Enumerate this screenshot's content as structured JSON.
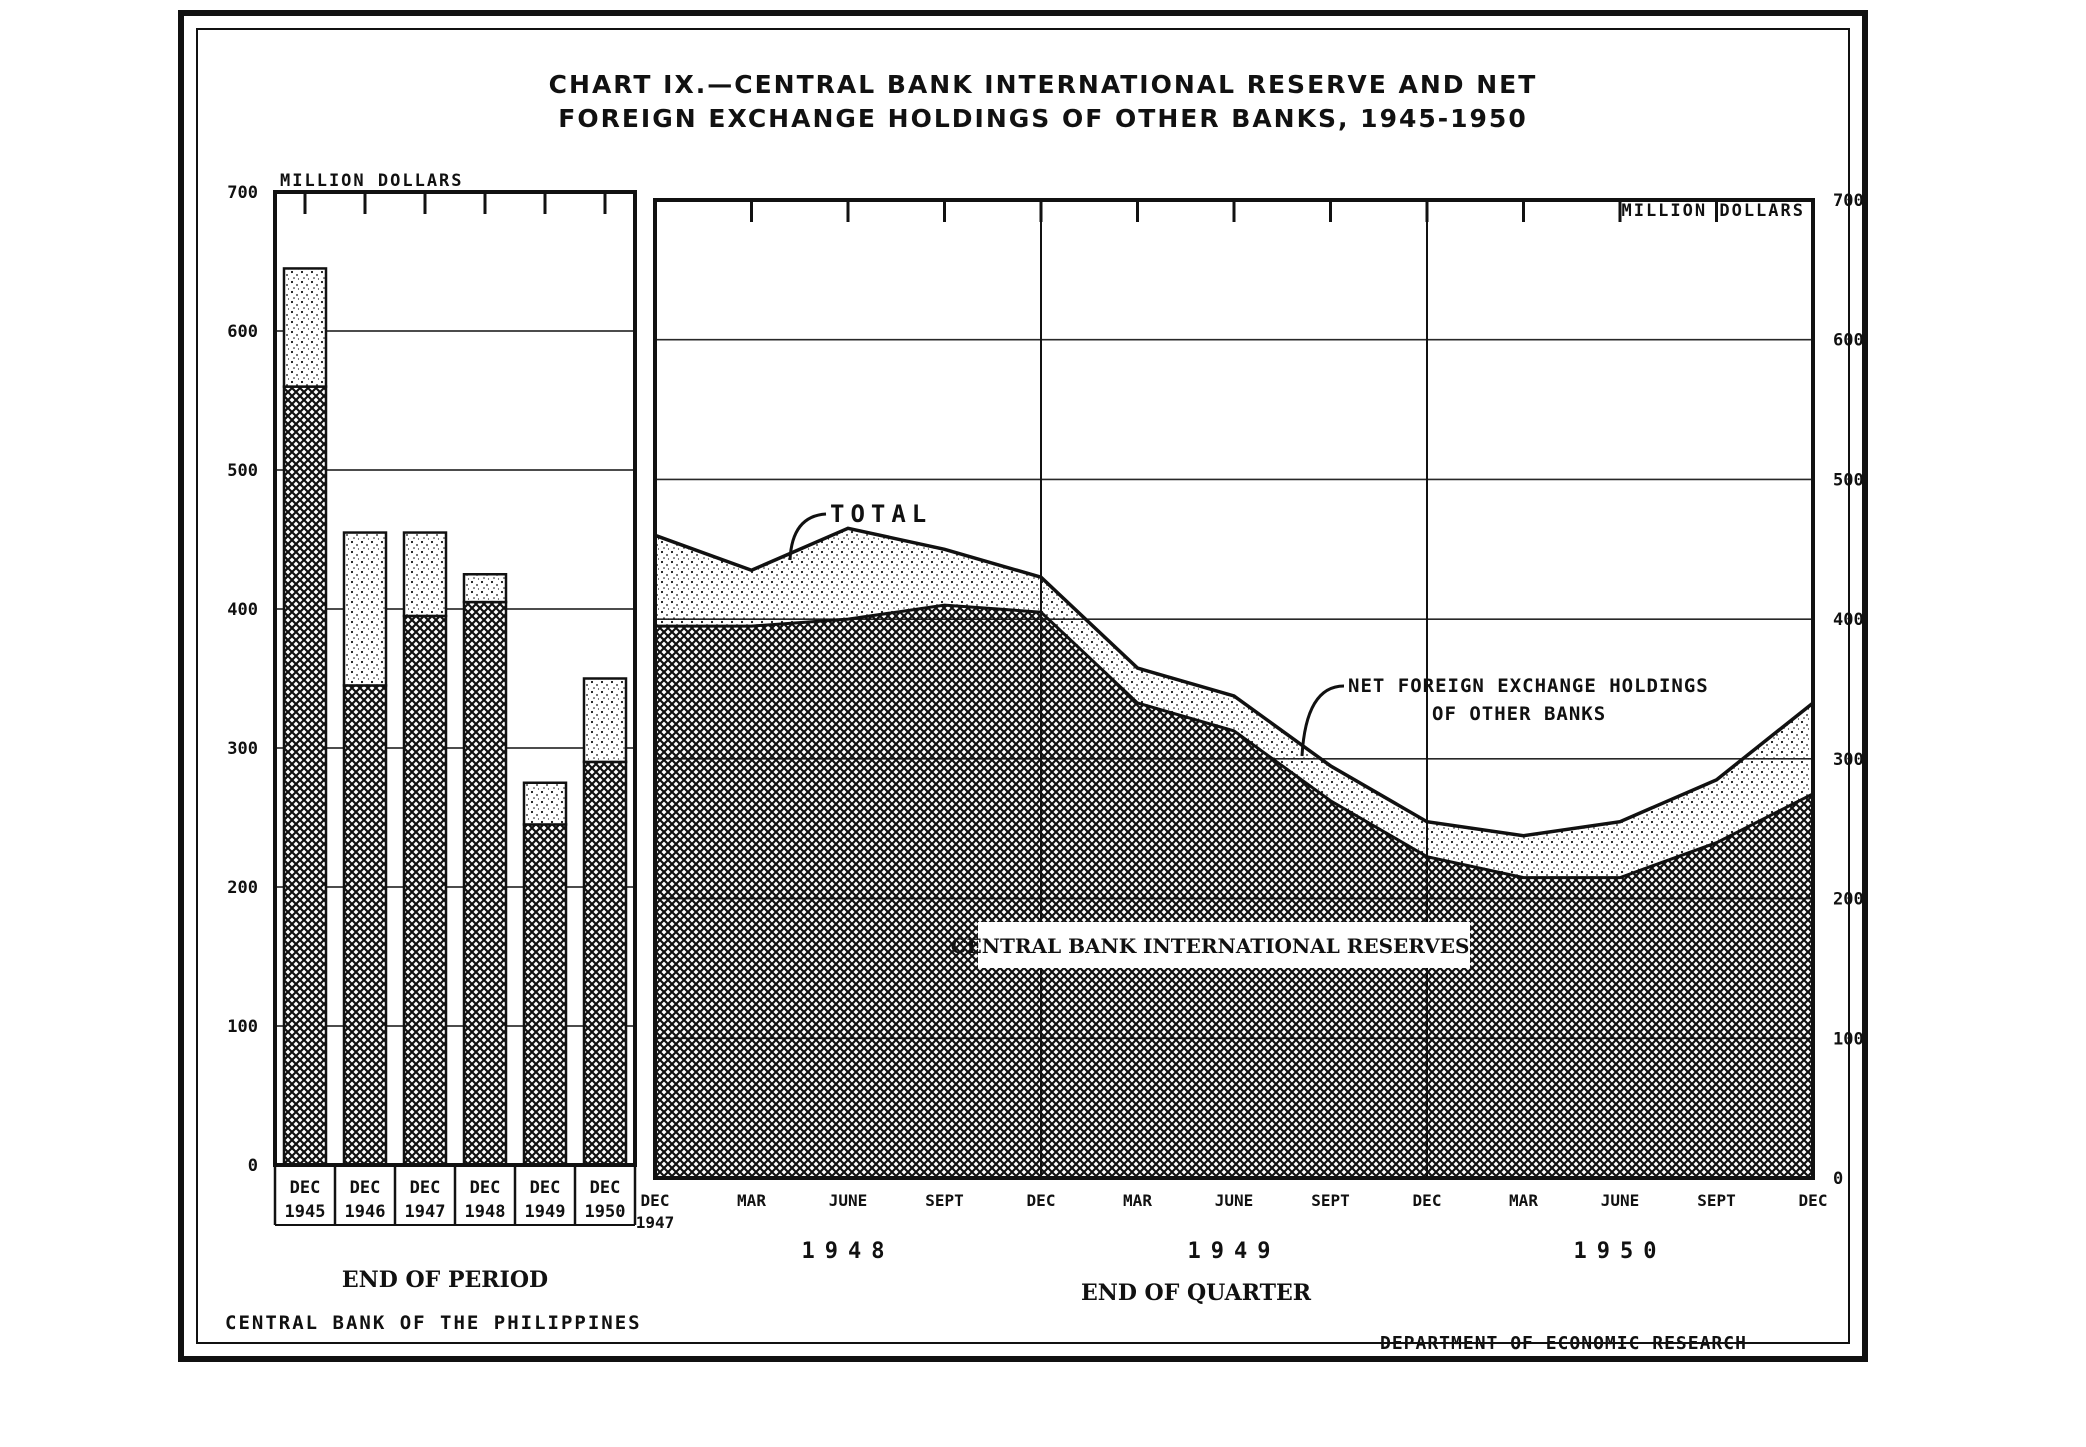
{
  "document": {
    "title_line1": "CHART IX.—CENTRAL BANK INTERNATIONAL RESERVE AND NET",
    "title_line2": "FOREIGN EXCHANGE HOLDINGS OF OTHER BANKS, 1945-1950",
    "footer_left": "CENTRAL BANK OF THE PHILIPPINES",
    "footer_right": "DEPARTMENT OF ECONOMIC RESEARCH"
  },
  "colors": {
    "ink": "#111111",
    "paper": "#ffffff",
    "stipple": "#d9d9d9"
  },
  "chart_data": [
    {
      "type": "bar",
      "stacked": true,
      "unit_label": "MILLION DOLLARS",
      "xlabel": "END OF PERIOD",
      "ylim": [
        0,
        700
      ],
      "yticks": [
        "0",
        "100",
        "200",
        "300",
        "400",
        "500",
        "600",
        "700"
      ],
      "categories": [
        {
          "month": "DEC",
          "year": "1945"
        },
        {
          "month": "DEC",
          "year": "1946"
        },
        {
          "month": "DEC",
          "year": "1947"
        },
        {
          "month": "DEC",
          "year": "1948"
        },
        {
          "month": "DEC",
          "year": "1949"
        },
        {
          "month": "DEC",
          "year": "1950"
        }
      ],
      "series": [
        {
          "values": [
            560,
            345,
            395,
            405,
            245,
            290
          ],
          "pattern": "crosshatch"
        },
        {
          "values": [
            85,
            110,
            60,
            20,
            30,
            60
          ],
          "pattern": "stipple"
        }
      ],
      "grid": true
    },
    {
      "type": "area",
      "stacked": true,
      "unit_label": "MILLION DOLLARS",
      "xlabel": "END OF QUARTER",
      "ylim": [
        0,
        700
      ],
      "yticks": [
        "0",
        "100",
        "200",
        "300",
        "400",
        "500",
        "600",
        "700"
      ],
      "x": [
        {
          "label": "DEC",
          "sub": "1947"
        },
        {
          "label": "MAR"
        },
        {
          "label": "JUNE"
        },
        {
          "label": "SEPT"
        },
        {
          "label": "DEC"
        },
        {
          "label": "MAR"
        },
        {
          "label": "JUNE"
        },
        {
          "label": "SEPT"
        },
        {
          "label": "DEC"
        },
        {
          "label": "MAR"
        },
        {
          "label": "JUNE"
        },
        {
          "label": "SEPT"
        },
        {
          "label": "DEC"
        }
      ],
      "year_labels": [
        "1948",
        "1949",
        "1950"
      ],
      "series": [
        {
          "name": "CENTRAL BANK INTERNATIONAL RESERVES",
          "values": [
            395,
            395,
            400,
            410,
            405,
            340,
            320,
            270,
            230,
            215,
            215,
            240,
            275
          ],
          "pattern": "crosshatch"
        },
        {
          "name": "NET FOREIGN EXCHANGE HOLDINGS OF OTHER BANKS",
          "values": [
            65,
            40,
            65,
            40,
            25,
            25,
            25,
            25,
            25,
            30,
            40,
            45,
            65
          ],
          "pattern": "stipple"
        }
      ],
      "annotations": [
        {
          "text": "TOTAL"
        },
        {
          "text": "NET FOREIGN EXCHANGE HOLDINGS",
          "text2": "OF OTHER BANKS"
        },
        {
          "text": "CENTRAL BANK INTERNATIONAL RESERVES"
        }
      ],
      "grid": true
    }
  ]
}
